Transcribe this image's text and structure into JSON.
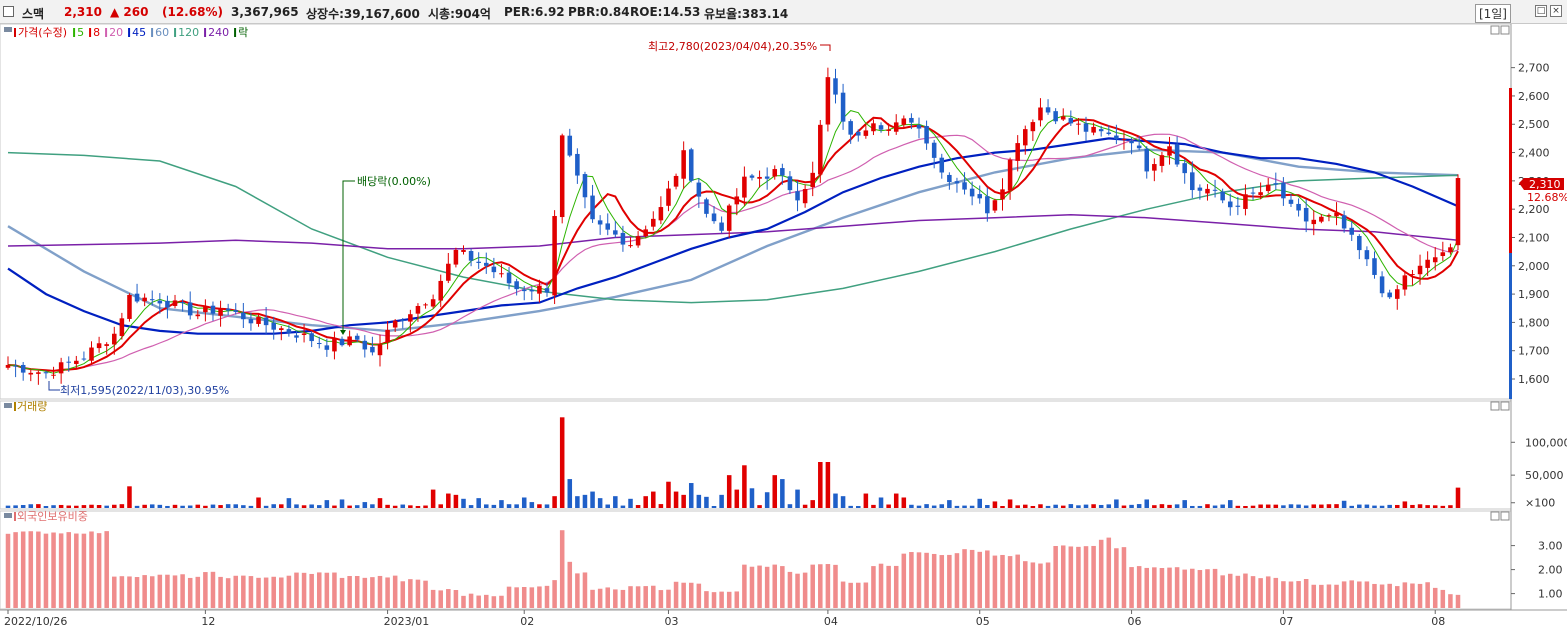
{
  "header": {
    "name": "스맥",
    "price": "2,310",
    "change": "▲ 260",
    "change_pct": "(12.68%)",
    "volume": "3,367,965",
    "listed_label": "상장수:39,167,600",
    "mcap_label": "시총:904억",
    "per_label": "PER:6.92",
    "pbr_label": "PBR:0.84",
    "roe_label": "ROE:14.53",
    "retention_label": "유보율:383.14",
    "period": "[1일]"
  },
  "legend": {
    "price_label": "가격(수정)",
    "ma": [
      {
        "label": "5",
        "color": "#2db400"
      },
      {
        "label": "8",
        "color": "#e00000"
      },
      {
        "label": "20",
        "color": "#d060b0"
      },
      {
        "label": "45",
        "color": "#0020c0"
      },
      {
        "label": "60",
        "color": "#6a8fbf"
      },
      {
        "label": "120",
        "color": "#40a080"
      },
      {
        "label": "240",
        "color": "#7a20a8"
      }
    ],
    "drop_label": "락",
    "volume_label": "거래량",
    "foreign_label": "외국인보유비중"
  },
  "colors": {
    "up": "#e00000",
    "down": "#1f5fc8",
    "foreign": "#f08c8c"
  },
  "annotations": {
    "high": "최고2,780(2023/04/04),20.35%",
    "low": "최저1,595(2022/11/03),30.95%",
    "dividend": "배당락(0.00%)",
    "last_price": "2,310",
    "last_pct": "12.68%"
  },
  "chart_data": [
    {
      "type": "candlestick",
      "title": "가격(수정)",
      "ylim": [
        1540,
        2840
      ],
      "yticks": [
        "2,700",
        "2,600",
        "2,500",
        "2,400",
        "2,300",
        "2,200",
        "2,100",
        "2,000",
        "1,900",
        "1,800",
        "1,700",
        "1,600"
      ],
      "ytick_values": [
        2700,
        2600,
        2500,
        2400,
        2300,
        2200,
        2100,
        2000,
        1900,
        1800,
        1700,
        1600
      ],
      "xlabels": [
        "2022/10/26",
        "12",
        "2023/01",
        "02",
        "03",
        "04",
        "05",
        "06",
        "07",
        "08"
      ],
      "xlabel_index": [
        0,
        26,
        50,
        68,
        87,
        108,
        128,
        148,
        168,
        188
      ],
      "n_days": 192,
      "close_key": [
        [
          0,
          1650
        ],
        [
          5,
          1620
        ],
        [
          10,
          1680
        ],
        [
          14,
          1760
        ],
        [
          16,
          1890
        ],
        [
          20,
          1880
        ],
        [
          25,
          1830
        ],
        [
          28,
          1850
        ],
        [
          33,
          1800
        ],
        [
          37,
          1770
        ],
        [
          42,
          1720
        ],
        [
          46,
          1740
        ],
        [
          48,
          1690
        ],
        [
          51,
          1800
        ],
        [
          56,
          1900
        ],
        [
          59,
          2050
        ],
        [
          63,
          2000
        ],
        [
          67,
          1920
        ],
        [
          71,
          1920
        ],
        [
          73,
          2450
        ],
        [
          77,
          2150
        ],
        [
          82,
          2080
        ],
        [
          86,
          2200
        ],
        [
          89,
          2390
        ],
        [
          92,
          2180
        ],
        [
          94,
          2140
        ],
        [
          97,
          2300
        ],
        [
          101,
          2330
        ],
        [
          104,
          2250
        ],
        [
          106,
          2320
        ],
        [
          108,
          2660
        ],
        [
          111,
          2450
        ],
        [
          114,
          2520
        ],
        [
          116,
          2480
        ],
        [
          119,
          2520
        ],
        [
          121,
          2450
        ],
        [
          123,
          2330
        ],
        [
          126,
          2280
        ],
        [
          129,
          2200
        ],
        [
          131,
          2290
        ],
        [
          133,
          2450
        ],
        [
          136,
          2560
        ],
        [
          138,
          2530
        ],
        [
          142,
          2480
        ],
        [
          145,
          2460
        ],
        [
          148,
          2450
        ],
        [
          150,
          2350
        ],
        [
          153,
          2430
        ],
        [
          156,
          2270
        ],
        [
          158,
          2270
        ],
        [
          161,
          2210
        ],
        [
          164,
          2250
        ],
        [
          167,
          2280
        ],
        [
          169,
          2200
        ],
        [
          171,
          2160
        ],
        [
          175,
          2170
        ],
        [
          177,
          2090
        ],
        [
          180,
          1970
        ],
        [
          182,
          1870
        ],
        [
          184,
          1960
        ],
        [
          186,
          1990
        ],
        [
          189,
          2050
        ],
        [
          190,
          2050
        ],
        [
          191,
          2310
        ]
      ],
      "ma_lines": [
        {
          "name": "60",
          "color": "#6a8fbf",
          "points": [
            [
              0,
              2140
            ],
            [
              10,
              1980
            ],
            [
              20,
              1850
            ],
            [
              30,
              1820
            ],
            [
              40,
              1790
            ],
            [
              50,
              1770
            ],
            [
              60,
              1800
            ],
            [
              70,
              1840
            ],
            [
              80,
              1890
            ],
            [
              90,
              1950
            ],
            [
              100,
              2070
            ],
            [
              110,
              2170
            ],
            [
              120,
              2260
            ],
            [
              130,
              2330
            ],
            [
              140,
              2380
            ],
            [
              150,
              2410
            ],
            [
              160,
              2400
            ],
            [
              170,
              2350
            ],
            [
              180,
              2330
            ],
            [
              191,
              2320
            ]
          ]
        },
        {
          "name": "120",
          "color": "#40a080",
          "points": [
            [
              0,
              2400
            ],
            [
              10,
              2390
            ],
            [
              20,
              2370
            ],
            [
              30,
              2280
            ],
            [
              40,
              2130
            ],
            [
              50,
              2030
            ],
            [
              60,
              1960
            ],
            [
              70,
              1910
            ],
            [
              80,
              1880
            ],
            [
              90,
              1870
            ],
            [
              100,
              1880
            ],
            [
              110,
              1920
            ],
            [
              120,
              1980
            ],
            [
              130,
              2050
            ],
            [
              140,
              2130
            ],
            [
              150,
              2200
            ],
            [
              160,
              2260
            ],
            [
              170,
              2300
            ],
            [
              180,
              2310
            ],
            [
              191,
              2320
            ]
          ]
        },
        {
          "name": "240",
          "color": "#7a20a8",
          "points": [
            [
              0,
              2070
            ],
            [
              20,
              2080
            ],
            [
              30,
              2090
            ],
            [
              40,
              2080
            ],
            [
              50,
              2060
            ],
            [
              60,
              2060
            ],
            [
              70,
              2070
            ],
            [
              80,
              2100
            ],
            [
              90,
              2110
            ],
            [
              100,
              2120
            ],
            [
              110,
              2140
            ],
            [
              120,
              2160
            ],
            [
              130,
              2170
            ],
            [
              140,
              2180
            ],
            [
              150,
              2170
            ],
            [
              160,
              2150
            ],
            [
              170,
              2130
            ],
            [
              180,
              2120
            ],
            [
              191,
              2090
            ]
          ]
        },
        {
          "name": "45",
          "color": "#0020c0",
          "points": [
            [
              0,
              1990
            ],
            [
              5,
              1900
            ],
            [
              10,
              1840
            ],
            [
              15,
              1790
            ],
            [
              20,
              1770
            ],
            [
              25,
              1760
            ],
            [
              30,
              1760
            ],
            [
              35,
              1760
            ],
            [
              40,
              1770
            ],
            [
              45,
              1790
            ],
            [
              50,
              1800
            ],
            [
              55,
              1820
            ],
            [
              60,
              1840
            ],
            [
              65,
              1860
            ],
            [
              70,
              1870
            ],
            [
              75,
              1920
            ],
            [
              80,
              1960
            ],
            [
              85,
              2010
            ],
            [
              90,
              2060
            ],
            [
              95,
              2100
            ],
            [
              100,
              2130
            ],
            [
              105,
              2190
            ],
            [
              110,
              2260
            ],
            [
              115,
              2310
            ],
            [
              120,
              2350
            ],
            [
              125,
              2380
            ],
            [
              130,
              2400
            ],
            [
              135,
              2410
            ],
            [
              140,
              2430
            ],
            [
              145,
              2450
            ],
            [
              150,
              2440
            ],
            [
              155,
              2430
            ],
            [
              160,
              2400
            ],
            [
              165,
              2380
            ],
            [
              170,
              2380
            ],
            [
              175,
              2360
            ],
            [
              180,
              2330
            ],
            [
              185,
              2280
            ],
            [
              191,
              2210
            ]
          ]
        }
      ]
    },
    {
      "type": "bar",
      "title": "거래량",
      "ylim": [
        0,
        140000
      ],
      "yticks": [
        "100,000",
        "50,000",
        "×100"
      ],
      "ytick_values": [
        100000,
        50000,
        8000
      ],
      "spikes": [
        [
          16,
          33000
        ],
        [
          33,
          16000
        ],
        [
          37,
          15000
        ],
        [
          42,
          12000
        ],
        [
          44,
          13000
        ],
        [
          47,
          9000
        ],
        [
          49,
          15000
        ],
        [
          56,
          28000
        ],
        [
          58,
          22000
        ],
        [
          59,
          20000
        ],
        [
          60,
          14000
        ],
        [
          62,
          15000
        ],
        [
          65,
          12000
        ],
        [
          68,
          16000
        ],
        [
          69,
          9000
        ],
        [
          72,
          18000
        ],
        [
          73,
          138000
        ],
        [
          74,
          44000
        ],
        [
          75,
          18000
        ],
        [
          76,
          20000
        ],
        [
          77,
          25000
        ],
        [
          78,
          15000
        ],
        [
          80,
          18000
        ],
        [
          82,
          14000
        ],
        [
          84,
          18000
        ],
        [
          85,
          25000
        ],
        [
          87,
          40000
        ],
        [
          88,
          25000
        ],
        [
          89,
          20000
        ],
        [
          90,
          38000
        ],
        [
          91,
          20000
        ],
        [
          92,
          17000
        ],
        [
          94,
          20000
        ],
        [
          95,
          50000
        ],
        [
          96,
          28000
        ],
        [
          97,
          65000
        ],
        [
          98,
          30000
        ],
        [
          100,
          24000
        ],
        [
          101,
          50000
        ],
        [
          102,
          44000
        ],
        [
          104,
          28000
        ],
        [
          106,
          12000
        ],
        [
          107,
          70000
        ],
        [
          108,
          70000
        ],
        [
          109,
          22000
        ],
        [
          110,
          18000
        ],
        [
          113,
          22000
        ],
        [
          115,
          16000
        ],
        [
          117,
          22000
        ],
        [
          118,
          16000
        ],
        [
          124,
          12000
        ],
        [
          128,
          14000
        ],
        [
          130,
          10000
        ],
        [
          132,
          13000
        ],
        [
          146,
          13000
        ],
        [
          150,
          13000
        ],
        [
          155,
          12000
        ],
        [
          161,
          12000
        ],
        [
          176,
          11000
        ],
        [
          184,
          10000
        ],
        [
          191,
          31000
        ]
      ],
      "base": 3000
    },
    {
      "type": "bar",
      "title": "외국인보유비중",
      "ylim": [
        0.4,
        3.9
      ],
      "yticks": [
        "3.00",
        "2.00",
        "1.00"
      ],
      "ytick_values": [
        3.0,
        2.0,
        1.0
      ],
      "segments": [
        [
          0,
          14,
          3.55
        ],
        [
          14,
          24,
          1.75
        ],
        [
          24,
          26,
          1.7
        ],
        [
          26,
          28,
          1.85
        ],
        [
          28,
          38,
          1.7
        ],
        [
          38,
          44,
          1.85
        ],
        [
          44,
          52,
          1.7
        ],
        [
          52,
          56,
          1.55
        ],
        [
          56,
          60,
          1.15
        ],
        [
          60,
          66,
          0.95
        ],
        [
          66,
          70,
          1.25
        ],
        [
          70,
          72,
          1.35
        ],
        [
          72,
          73,
          1.6
        ],
        [
          73,
          74,
          3.6
        ],
        [
          74,
          75,
          2.35
        ],
        [
          75,
          77,
          1.9
        ],
        [
          77,
          82,
          1.2
        ],
        [
          82,
          86,
          1.35
        ],
        [
          86,
          88,
          1.2
        ],
        [
          88,
          92,
          1.45
        ],
        [
          92,
          97,
          1.05
        ],
        [
          97,
          103,
          2.15
        ],
        [
          103,
          106,
          1.85
        ],
        [
          106,
          110,
          2.2
        ],
        [
          110,
          114,
          1.5
        ],
        [
          114,
          118,
          2.2
        ],
        [
          118,
          122,
          2.7
        ],
        [
          122,
          126,
          2.65
        ],
        [
          126,
          130,
          2.8
        ],
        [
          130,
          134,
          2.6
        ],
        [
          134,
          138,
          2.3
        ],
        [
          138,
          144,
          2.95
        ],
        [
          144,
          146,
          3.3
        ],
        [
          146,
          148,
          2.9
        ],
        [
          148,
          152,
          2.1
        ],
        [
          152,
          156,
          2.05
        ],
        [
          156,
          160,
          2.0
        ],
        [
          160,
          164,
          1.8
        ],
        [
          164,
          168,
          1.7
        ],
        [
          168,
          172,
          1.55
        ],
        [
          172,
          176,
          1.35
        ],
        [
          176,
          180,
          1.5
        ],
        [
          180,
          184,
          1.35
        ],
        [
          184,
          188,
          1.45
        ],
        [
          188,
          190,
          1.2
        ],
        [
          190,
          192,
          1.0
        ]
      ]
    }
  ]
}
